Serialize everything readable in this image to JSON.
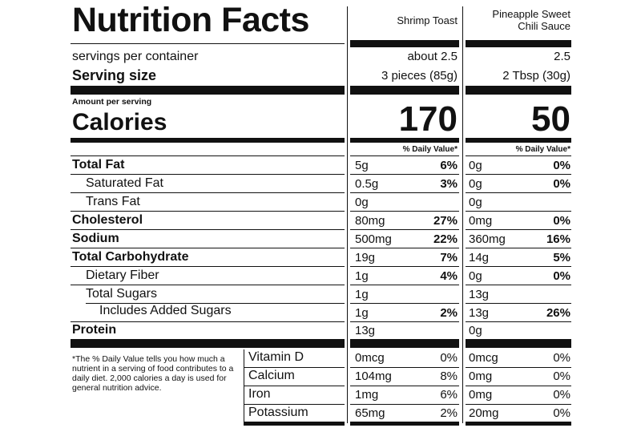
{
  "header": {
    "title": "Nutrition Facts",
    "products": [
      "Shrimp Toast",
      "Pineapple Sweet\nChili Sauce"
    ]
  },
  "servings": {
    "label": "servings per container",
    "values": [
      "about 2.5",
      "2.5"
    ]
  },
  "serving_size": {
    "label": "Serving size",
    "values": [
      "3 pieces (85g)",
      "2 Tbsp (30g)"
    ]
  },
  "calories": {
    "amount_label": "Amount per serving",
    "label": "Calories",
    "values": [
      "170",
      "50"
    ]
  },
  "daily_value_header": "% Daily Value*",
  "nutrients": [
    {
      "name": "Total Fat",
      "bold": true,
      "indent": 0,
      "a": "5g",
      "a_pct": "6%",
      "b": "0g",
      "b_pct": "0%"
    },
    {
      "name": "Saturated Fat",
      "bold": false,
      "indent": 1,
      "a": "0.5g",
      "a_pct": "3%",
      "b": "0g",
      "b_pct": "0%"
    },
    {
      "name": "Trans Fat",
      "bold": false,
      "indent": 1,
      "a": "0g",
      "a_pct": "",
      "b": "0g",
      "b_pct": ""
    },
    {
      "name": "Cholesterol",
      "bold": true,
      "indent": 0,
      "a": "80mg",
      "a_pct": "27%",
      "b": "0mg",
      "b_pct": "0%"
    },
    {
      "name": "Sodium",
      "bold": true,
      "indent": 0,
      "a": "500mg",
      "a_pct": "22%",
      "b": "360mg",
      "b_pct": "16%"
    },
    {
      "name": "Total Carbohydrate",
      "bold": true,
      "indent": 0,
      "a": "19g",
      "a_pct": "7%",
      "b": "14g",
      "b_pct": "5%"
    },
    {
      "name": "Dietary Fiber",
      "bold": false,
      "indent": 1,
      "a": "1g",
      "a_pct": "4%",
      "b": "0g",
      "b_pct": "0%"
    },
    {
      "name": "Total Sugars",
      "bold": false,
      "indent": 1,
      "a": "1g",
      "a_pct": "",
      "b": "13g",
      "b_pct": ""
    },
    {
      "name": "Includes Added Sugars",
      "bold": false,
      "indent": 2,
      "a": "1g",
      "a_pct": "2%",
      "b": "13g",
      "b_pct": "26%"
    },
    {
      "name": "Protein",
      "bold": true,
      "indent": 0,
      "a": "13g",
      "a_pct": "",
      "b": "0g",
      "b_pct": ""
    }
  ],
  "vitamins": [
    {
      "name": "Vitamin D",
      "a": "0mcg",
      "a_pct": "0%",
      "b": "0mcg",
      "b_pct": "0%"
    },
    {
      "name": "Calcium",
      "a": "104mg",
      "a_pct": "8%",
      "b": "0mg",
      "b_pct": "0%"
    },
    {
      "name": "Iron",
      "a": "1mg",
      "a_pct": "6%",
      "b": "0mg",
      "b_pct": "0%"
    },
    {
      "name": "Potassium",
      "a": "65mg",
      "a_pct": "2%",
      "b": "20mg",
      "b_pct": "0%"
    }
  ],
  "footnote": "*The % Daily Value tells you how much a nutrient in a serving of food contributes to a daily diet. 2,000 calories a day is used for general nutrition advice."
}
